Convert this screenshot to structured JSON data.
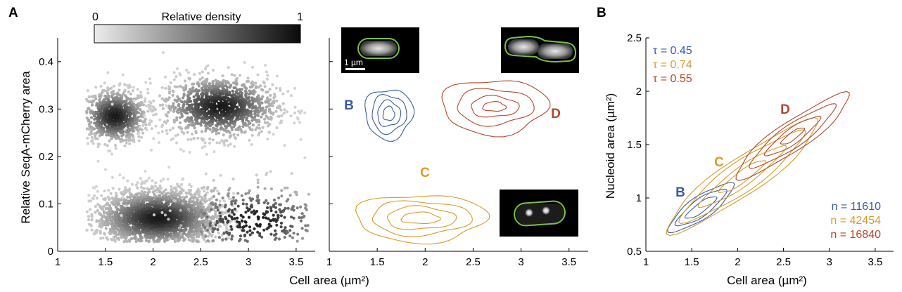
{
  "figure": {
    "panel_labels": [
      "A",
      "B"
    ],
    "colorbar": {
      "label": "Relative density",
      "min_label": "0",
      "max_label": "1"
    },
    "scale_bar_label": "1 µm",
    "inset_labels": [
      "B",
      "C",
      "D"
    ]
  },
  "colors": {
    "B": "#3a5aa6",
    "C": "#d99a2b",
    "D": "#b3472a",
    "cell_outline": "#7bc043"
  },
  "chart_data": [
    {
      "type": "scatter",
      "id": "A-left",
      "xlabel": "",
      "ylabel": "Relative SeqA-mCherry area",
      "xlim": [
        1,
        3.7
      ],
      "ylim": [
        0,
        0.45
      ],
      "xticks": [
        "1",
        "1.5",
        "2",
        "2.5",
        "3",
        "3.5"
      ],
      "yticks": [
        "0",
        "0.1",
        "0.2",
        "0.3",
        "0.4"
      ],
      "clusters": [
        {
          "cx": 1.6,
          "cy": 0.285,
          "sx": 0.17,
          "sy": 0.028,
          "n": 900
        },
        {
          "cx": 2.7,
          "cy": 0.305,
          "sx": 0.3,
          "sy": 0.032,
          "n": 1300
        },
        {
          "cx": 2.05,
          "cy": 0.07,
          "sx": 0.32,
          "sy": 0.03,
          "n": 2600
        },
        {
          "cx": 3.05,
          "cy": 0.065,
          "sx": 0.45,
          "sy": 0.04,
          "n": 420
        }
      ]
    },
    {
      "type": "contour",
      "id": "A-right",
      "xlabel": "Cell area (µm²)",
      "xlim": [
        1,
        3.7
      ],
      "ylim": [
        0,
        0.45
      ],
      "xticks": [
        "1",
        "1.5",
        "2",
        "2.5",
        "3",
        "3.5"
      ],
      "series": [
        {
          "name": "B",
          "cx": 1.62,
          "cy": 0.29,
          "rx": [
            0.06,
            0.12,
            0.18,
            0.25
          ],
          "ry": [
            0.015,
            0.027,
            0.04,
            0.053
          ]
        },
        {
          "name": "D",
          "cx": 2.72,
          "cy": 0.305,
          "rx": [
            0.12,
            0.25,
            0.4,
            0.55
          ],
          "ry": [
            0.01,
            0.022,
            0.038,
            0.058
          ]
        },
        {
          "name": "C",
          "cx": 1.95,
          "cy": 0.07,
          "rx": [
            0.2,
            0.36,
            0.52,
            0.68
          ],
          "ry": [
            0.012,
            0.024,
            0.036,
            0.05
          ]
        }
      ]
    },
    {
      "type": "contour",
      "id": "B",
      "xlabel": "Cell area (µm²)",
      "ylabel": "Nucleoid area (µm²)",
      "xlim": [
        1,
        3.7
      ],
      "ylim": [
        0.5,
        2.5
      ],
      "xticks": [
        "1",
        "1.5",
        "2",
        "2.5",
        "3",
        "3.5"
      ],
      "yticks": [
        "0.5",
        "1",
        "1.5",
        "2",
        "2.5"
      ],
      "series": [
        {
          "name": "B",
          "tau": "τ = 0.45",
          "n_label": "n = 11610",
          "cx": 1.6,
          "cy": 0.91
        },
        {
          "name": "C",
          "tau": "τ = 0.74",
          "n_label": "n = 42454",
          "cx": 2.05,
          "cy": 1.2
        },
        {
          "name": "D",
          "tau": "τ = 0.55",
          "n_label": "n = 16840",
          "cx": 2.6,
          "cy": 1.58
        }
      ]
    }
  ]
}
